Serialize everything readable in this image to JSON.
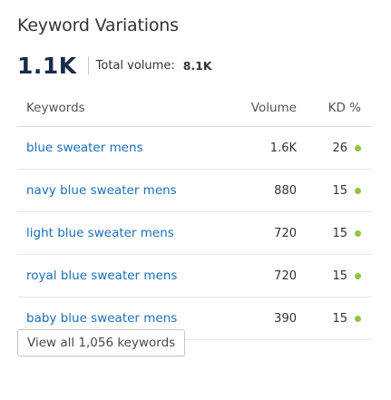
{
  "widget": {
    "title": "Keyword Variations",
    "count": "1.1K",
    "total_volume_label": "Total volume:",
    "total_volume_value": "8.1K"
  },
  "table": {
    "columns": [
      "Keywords",
      "Volume",
      "KD %"
    ],
    "rows": [
      {
        "keyword": "blue sweater mens",
        "volume": "1.6K",
        "kd": "26"
      },
      {
        "keyword": "navy blue sweater mens",
        "volume": "880",
        "kd": "15"
      },
      {
        "keyword": "light blue sweater mens",
        "volume": "720",
        "kd": "15"
      },
      {
        "keyword": "royal blue sweater mens",
        "volume": "720",
        "kd": "15"
      },
      {
        "keyword": "baby blue sweater mens",
        "volume": "390",
        "kd": "15"
      }
    ],
    "kd_dot_color": "#8fc63f"
  },
  "footer": {
    "view_all_label": "View all 1,056 keywords"
  },
  "colors": {
    "link": "#1a6fb8",
    "big_count": "#1a2b4c",
    "kd_easy": "#8fc63f"
  }
}
